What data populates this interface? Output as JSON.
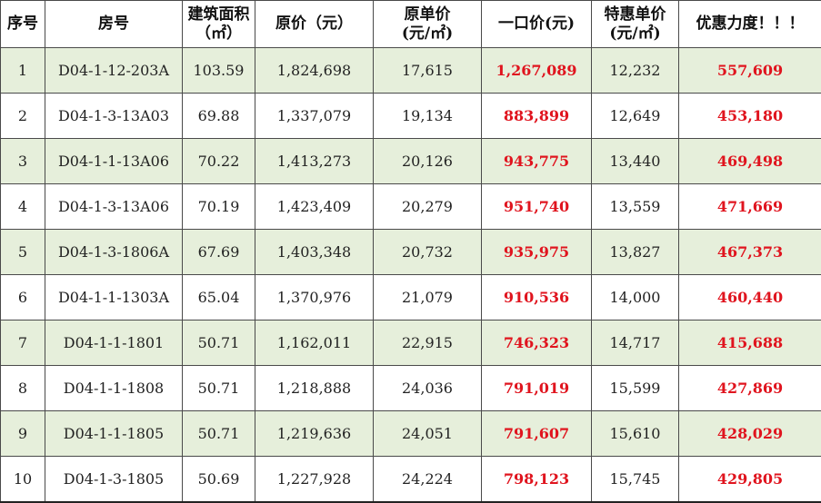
{
  "colors": {
    "band": "#e6efdb",
    "accent": "#e0141e",
    "border": "#4a4a4a"
  },
  "headers": [
    {
      "line1": "序号",
      "line2": ""
    },
    {
      "line1": "房号",
      "line2": ""
    },
    {
      "line1": "建筑面积",
      "line2": "（㎡）"
    },
    {
      "line1": "原价（元）",
      "line2": ""
    },
    {
      "line1": "原单价",
      "line2": "(元/㎡)"
    },
    {
      "line1": "一口价(元)",
      "line2": ""
    },
    {
      "line1": "特惠单价",
      "line2": "(元/㎡)"
    },
    {
      "line1": "优惠力度！！！",
      "line2": ""
    }
  ],
  "rows": [
    [
      "1",
      "D04-1-12-203A",
      "103.59",
      "1,824,698",
      "17,615",
      "1,267,089",
      "12,232",
      "557,609"
    ],
    [
      "2",
      "D04-1-3-13A03",
      "69.88",
      "1,337,079",
      "19,134",
      "883,899",
      "12,649",
      "453,180"
    ],
    [
      "3",
      "D04-1-1-13A06",
      "70.22",
      "1,413,273",
      "20,126",
      "943,775",
      "13,440",
      "469,498"
    ],
    [
      "4",
      "D04-1-3-13A06",
      "70.19",
      "1,423,409",
      "20,279",
      "951,740",
      "13,559",
      "471,669"
    ],
    [
      "5",
      "D04-1-3-1806A",
      "67.69",
      "1,403,348",
      "20,732",
      "935,975",
      "13,827",
      "467,373"
    ],
    [
      "6",
      "D04-1-1-1303A",
      "65.04",
      "1,370,976",
      "21,079",
      "910,536",
      "14,000",
      "460,440"
    ],
    [
      "7",
      "D04-1-1-1801",
      "50.71",
      "1,162,011",
      "22,915",
      "746,323",
      "14,717",
      "415,688"
    ],
    [
      "8",
      "D04-1-1-1808",
      "50.71",
      "1,218,888",
      "24,036",
      "791,019",
      "15,599",
      "427,869"
    ],
    [
      "9",
      "D04-1-1-1805",
      "50.71",
      "1,219,636",
      "24,051",
      "791,607",
      "15,610",
      "428,029"
    ],
    [
      "10",
      "D04-1-3-1805",
      "50.69",
      "1,227,928",
      "24,224",
      "798,123",
      "15,745",
      "429,805"
    ]
  ]
}
